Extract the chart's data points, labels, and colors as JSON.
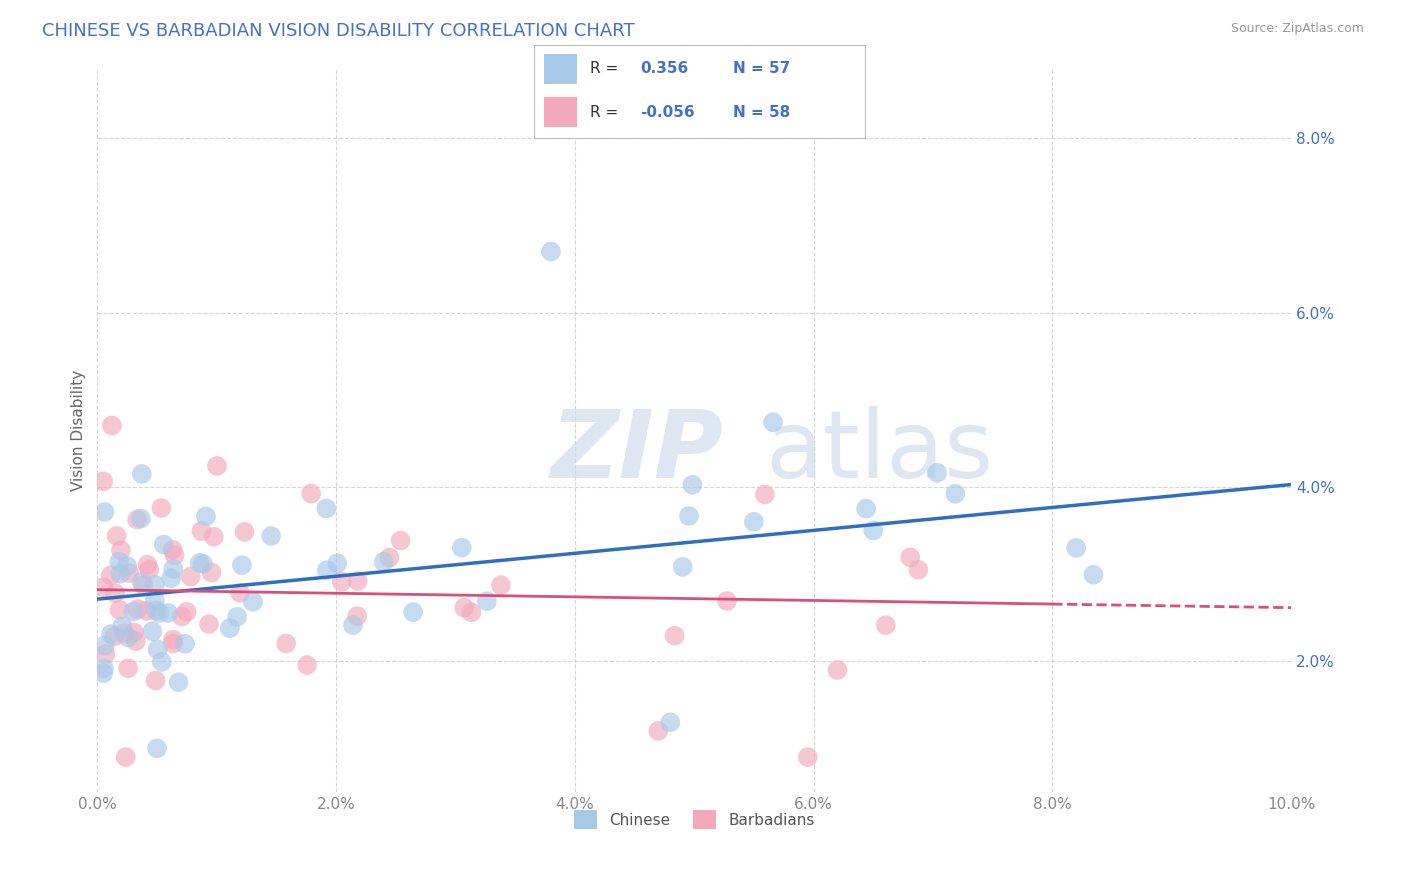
{
  "title": "CHINESE VS BARBADIAN VISION DISABILITY CORRELATION CHART",
  "source": "Source: ZipAtlas.com",
  "ylabel": "Vision Disability",
  "xlim": [
    0.0,
    0.1
  ],
  "ylim": [
    0.005,
    0.088
  ],
  "yticks": [
    0.02,
    0.04,
    0.06,
    0.08
  ],
  "xticks": [
    0.0,
    0.02,
    0.04,
    0.06,
    0.08,
    0.1
  ],
  "chinese_R": 0.356,
  "chinese_N": 57,
  "barbadian_R": -0.056,
  "barbadian_N": 58,
  "chinese_color": "#A8C8E8",
  "barbadian_color": "#F4A8BC",
  "chinese_line_color": "#2E6FBF",
  "barbadian_line_color": "#D94F7A",
  "watermark_color": "#C8D8E8",
  "background_color": "#ffffff",
  "grid_color": "#cccccc",
  "title_color": "#4472c4",
  "legend_text_color": "#4472c4",
  "axis_label_color": "#4472c4",
  "tick_color": "#888888"
}
